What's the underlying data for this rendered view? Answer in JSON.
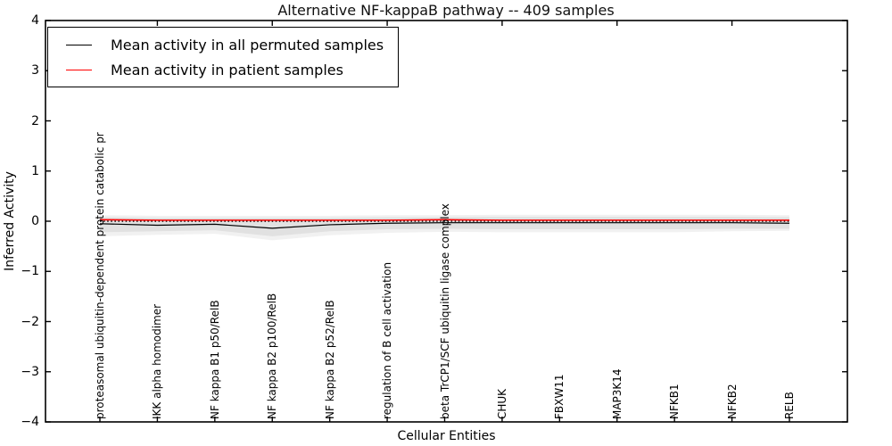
{
  "chart_data": {
    "type": "line",
    "title": "Alternative NF-kappaB pathway -- 409 samples",
    "xlabel": "Cellular Entities",
    "ylabel": "Inferred Activity",
    "ylim": [
      -4,
      4
    ],
    "grid": false,
    "legend_position": "upper left",
    "yticks": [
      {
        "value": 4,
        "label": "4"
      },
      {
        "value": 3,
        "label": "3"
      },
      {
        "value": 2,
        "label": "2"
      },
      {
        "value": 1,
        "label": "1"
      },
      {
        "value": 0,
        "label": "0"
      },
      {
        "value": -1,
        "label": "−1"
      },
      {
        "value": -2,
        "label": "−2"
      },
      {
        "value": -3,
        "label": "−3"
      },
      {
        "value": -4,
        "label": "−4"
      }
    ],
    "categories": [
      "proteasomal ubiquitin-dependent protein catabolic pr",
      "IKK alpha homodimer",
      "NF kappa B1 p50/RelB",
      "NF kappa B2 p100/RelB",
      "NF kappa B2 p52/RelB",
      "regulation of B cell activation",
      "beta TrCP1/SCF ubiquitin ligase complex",
      "CHUK",
      "FBXW11",
      "MAP3K14",
      "NFKB1",
      "NFKB2",
      "RELB"
    ],
    "series": [
      {
        "name": "Mean activity in all permuted samples",
        "color": "#000000",
        "line_style": "solid",
        "values": [
          -0.05,
          -0.08,
          -0.06,
          -0.14,
          -0.07,
          -0.04,
          -0.03,
          -0.03,
          -0.03,
          -0.03,
          -0.03,
          -0.03,
          -0.04
        ]
      },
      {
        "name": "Mean activity in patient samples",
        "color": "#ff0000",
        "line_style": "solid",
        "values": [
          0.03,
          0.02,
          0.02,
          0.02,
          0.02,
          0.02,
          0.03,
          0.02,
          0.02,
          0.02,
          0.02,
          0.02,
          0.02
        ]
      },
      {
        "name": "zero-reference",
        "color": "#000000",
        "line_style": "dotted",
        "values": [
          0,
          0,
          0,
          0,
          0,
          0,
          0,
          0,
          0,
          0,
          0,
          0,
          0
        ]
      }
    ],
    "bands": [
      {
        "name": "permuted-range-outer",
        "color": "#f1f1f1",
        "upper": [
          0.12,
          0.11,
          0.11,
          0.11,
          0.11,
          0.12,
          0.12,
          0.13,
          0.13,
          0.13,
          0.13,
          0.13,
          0.12
        ],
        "lower": [
          -0.3,
          -0.27,
          -0.25,
          -0.38,
          -0.28,
          -0.23,
          -0.21,
          -0.22,
          -0.22,
          -0.22,
          -0.22,
          -0.2,
          -0.19
        ]
      },
      {
        "name": "permuted-range-inner",
        "color": "#e1e1e1",
        "upper": [
          0.08,
          0.07,
          0.07,
          0.07,
          0.07,
          0.08,
          0.08,
          0.09,
          0.09,
          0.09,
          0.09,
          0.09,
          0.08
        ],
        "lower": [
          -0.22,
          -0.2,
          -0.18,
          -0.3,
          -0.2,
          -0.16,
          -0.15,
          -0.16,
          -0.16,
          -0.16,
          -0.16,
          -0.15,
          -0.15
        ]
      }
    ]
  }
}
